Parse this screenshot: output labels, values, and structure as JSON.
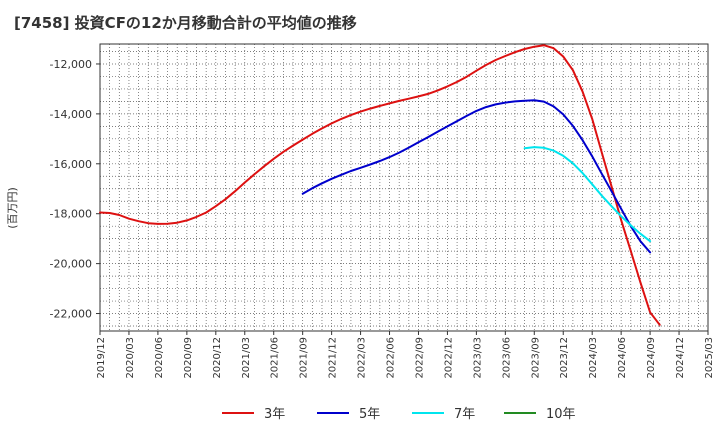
{
  "chart_data": {
    "type": "line",
    "title": "[7458]  投資CFの12か月移動合計の平均値の推移",
    "ylabel": "(百万円)",
    "xlabel": "",
    "x_ticks": [
      "2019/12",
      "2020/03",
      "2020/06",
      "2020/09",
      "2020/12",
      "2021/03",
      "2021/06",
      "2021/09",
      "2021/12",
      "2022/03",
      "2022/06",
      "2022/09",
      "2022/12",
      "2023/03",
      "2023/06",
      "2023/09",
      "2023/12",
      "2024/03",
      "2024/06",
      "2024/09",
      "2024/12",
      "2025/03"
    ],
    "y_ticks": [
      "-12,000",
      "-14,000",
      "-16,000",
      "-18,000",
      "-20,000",
      "-22,000"
    ],
    "y_tick_values": [
      -12000,
      -14000,
      -16000,
      -18000,
      -20000,
      -22000
    ],
    "ylim": [
      -22700,
      -11200
    ],
    "xlim": [
      "2019/12",
      "2025/03"
    ],
    "grid": true,
    "legend_position": "bottom",
    "series": [
      {
        "name": "3年",
        "color": "#dd1111",
        "points": [
          [
            "2019/12",
            -17950
          ],
          [
            "2020/01",
            -17970
          ],
          [
            "2020/02",
            -18050
          ],
          [
            "2020/03",
            -18200
          ],
          [
            "2020/04",
            -18300
          ],
          [
            "2020/05",
            -18380
          ],
          [
            "2020/06",
            -18410
          ],
          [
            "2020/07",
            -18400
          ],
          [
            "2020/08",
            -18360
          ],
          [
            "2020/09",
            -18270
          ],
          [
            "2020/10",
            -18130
          ],
          [
            "2020/11",
            -17950
          ],
          [
            "2020/12",
            -17700
          ],
          [
            "2021/01",
            -17420
          ],
          [
            "2021/02",
            -17100
          ],
          [
            "2021/03",
            -16750
          ],
          [
            "2021/04",
            -16420
          ],
          [
            "2021/05",
            -16100
          ],
          [
            "2021/06",
            -15800
          ],
          [
            "2021/07",
            -15520
          ],
          [
            "2021/08",
            -15270
          ],
          [
            "2021/09",
            -15030
          ],
          [
            "2021/10",
            -14800
          ],
          [
            "2021/11",
            -14580
          ],
          [
            "2021/12",
            -14380
          ],
          [
            "2022/01",
            -14200
          ],
          [
            "2022/02",
            -14050
          ],
          [
            "2022/03",
            -13910
          ],
          [
            "2022/04",
            -13790
          ],
          [
            "2022/05",
            -13680
          ],
          [
            "2022/06",
            -13580
          ],
          [
            "2022/07",
            -13480
          ],
          [
            "2022/08",
            -13390
          ],
          [
            "2022/09",
            -13300
          ],
          [
            "2022/10",
            -13200
          ],
          [
            "2022/11",
            -13060
          ],
          [
            "2022/12",
            -12900
          ],
          [
            "2023/01",
            -12720
          ],
          [
            "2023/02",
            -12510
          ],
          [
            "2023/03",
            -12270
          ],
          [
            "2023/04",
            -12040
          ],
          [
            "2023/05",
            -11840
          ],
          [
            "2023/06",
            -11680
          ],
          [
            "2023/07",
            -11530
          ],
          [
            "2023/08",
            -11400
          ],
          [
            "2023/09",
            -11310
          ],
          [
            "2023/10",
            -11250
          ],
          [
            "2023/11",
            -11370
          ],
          [
            "2023/12",
            -11700
          ],
          [
            "2024/01",
            -12250
          ],
          [
            "2024/02",
            -13100
          ],
          [
            "2024/03",
            -14200
          ],
          [
            "2024/04",
            -15550
          ],
          [
            "2024/05",
            -16900
          ],
          [
            "2024/06",
            -18250
          ],
          [
            "2024/07",
            -19500
          ],
          [
            "2024/08",
            -20750
          ],
          [
            "2024/09",
            -21950
          ],
          [
            "2024/10",
            -22450
          ]
        ]
      },
      {
        "name": "5年",
        "color": "#0000cc",
        "points": [
          [
            "2021/09",
            -17200
          ],
          [
            "2021/10",
            -16980
          ],
          [
            "2021/11",
            -16780
          ],
          [
            "2021/12",
            -16600
          ],
          [
            "2022/01",
            -16440
          ],
          [
            "2022/02",
            -16290
          ],
          [
            "2022/03",
            -16160
          ],
          [
            "2022/04",
            -16030
          ],
          [
            "2022/05",
            -15890
          ],
          [
            "2022/06",
            -15730
          ],
          [
            "2022/07",
            -15550
          ],
          [
            "2022/08",
            -15350
          ],
          [
            "2022/09",
            -15140
          ],
          [
            "2022/10",
            -14930
          ],
          [
            "2022/11",
            -14710
          ],
          [
            "2022/12",
            -14500
          ],
          [
            "2023/01",
            -14290
          ],
          [
            "2023/02",
            -14080
          ],
          [
            "2023/03",
            -13880
          ],
          [
            "2023/04",
            -13730
          ],
          [
            "2023/05",
            -13620
          ],
          [
            "2023/06",
            -13550
          ],
          [
            "2023/07",
            -13500
          ],
          [
            "2023/08",
            -13470
          ],
          [
            "2023/09",
            -13450
          ],
          [
            "2023/10",
            -13510
          ],
          [
            "2023/11",
            -13700
          ],
          [
            "2023/12",
            -14020
          ],
          [
            "2024/01",
            -14480
          ],
          [
            "2024/02",
            -15050
          ],
          [
            "2024/03",
            -15700
          ],
          [
            "2024/04",
            -16400
          ],
          [
            "2024/05",
            -17100
          ],
          [
            "2024/06",
            -17800
          ],
          [
            "2024/07",
            -18500
          ],
          [
            "2024/08",
            -19100
          ],
          [
            "2024/09",
            -19550
          ]
        ]
      },
      {
        "name": "7年",
        "color": "#00e5ee",
        "points": [
          [
            "2023/08",
            -15380
          ],
          [
            "2023/09",
            -15330
          ],
          [
            "2023/10",
            -15360
          ],
          [
            "2023/11",
            -15470
          ],
          [
            "2023/12",
            -15680
          ],
          [
            "2024/01",
            -15980
          ],
          [
            "2024/02",
            -16370
          ],
          [
            "2024/03",
            -16820
          ],
          [
            "2024/04",
            -17280
          ],
          [
            "2024/05",
            -17700
          ],
          [
            "2024/06",
            -18100
          ],
          [
            "2024/07",
            -18470
          ],
          [
            "2024/08",
            -18800
          ],
          [
            "2024/09",
            -19100
          ]
        ]
      },
      {
        "name": "10年",
        "color": "#228b22",
        "points": []
      }
    ]
  }
}
